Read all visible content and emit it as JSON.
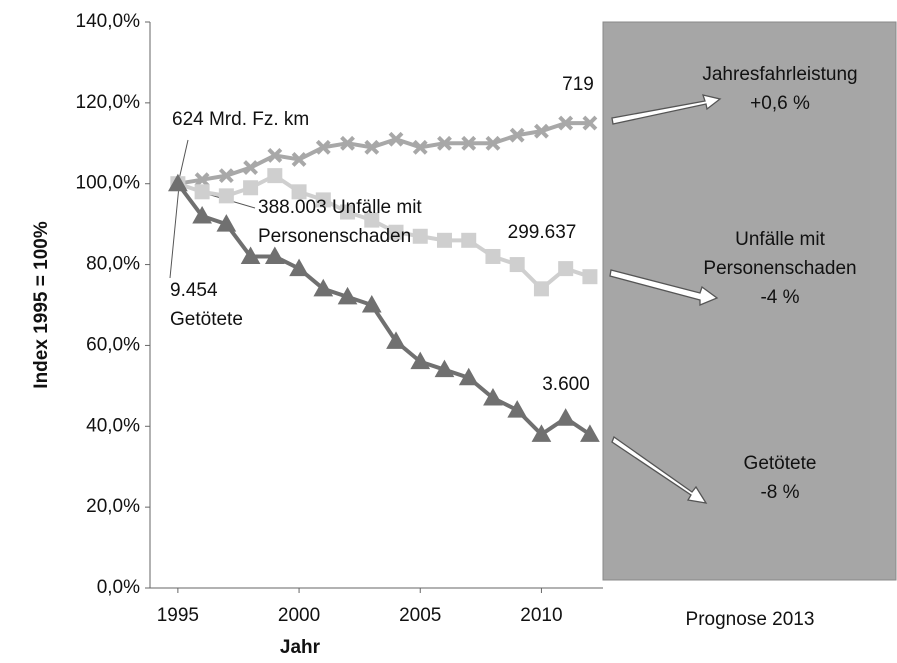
{
  "chart_data": {
    "type": "line",
    "ylabel": "Index 1995 = 100%",
    "xlabel": "Jahr",
    "xlim": [
      1993.85,
      2012.54
    ],
    "xticks": [
      1995,
      2000,
      2005,
      2010
    ],
    "ylim": [
      0,
      140
    ],
    "yticks": [
      {
        "value": 0,
        "label": "0,0%"
      },
      {
        "value": 20,
        "label": "20,0%"
      },
      {
        "value": 40,
        "label": "40,0%"
      },
      {
        "value": 60,
        "label": "60,0%"
      },
      {
        "value": 80,
        "label": "80,0%"
      },
      {
        "value": 100,
        "label": "100,0%"
      },
      {
        "value": 120,
        "label": "120,0%"
      },
      {
        "value": 140,
        "label": "140,0%"
      }
    ],
    "x": [
      1995,
      1996,
      1997,
      1998,
      1999,
      2000,
      2001,
      2002,
      2003,
      2004,
      2005,
      2006,
      2007,
      2008,
      2009,
      2010,
      2011,
      2012
    ],
    "series": [
      {
        "name": "Jahresfahrleistung",
        "color": "#a8a8a8",
        "marker": "x",
        "values": [
          100,
          101,
          102,
          104,
          107,
          106,
          109,
          110,
          109,
          111,
          109,
          110,
          110,
          110,
          112,
          113,
          115,
          115
        ]
      },
      {
        "name": "Unfälle mit Personenschaden",
        "color": "#cfcfcf",
        "marker": "square",
        "values": [
          100,
          98,
          97,
          99,
          102,
          98,
          96,
          93,
          91,
          88,
          87,
          86,
          86,
          82,
          80,
          74,
          79,
          77
        ]
      },
      {
        "name": "Getötete",
        "color": "#707070",
        "marker": "triangle",
        "values": [
          100,
          92,
          90,
          82,
          82,
          79,
          74,
          72,
          70,
          61,
          56,
          54,
          52,
          47,
          44,
          38,
          42,
          38
        ]
      }
    ],
    "annotations": {
      "start_km": [
        "624 Mrd. Fz. km"
      ],
      "start_unfaelle": [
        "388.003 Unfälle mit",
        "Personenschaden"
      ],
      "start_getoetete": [
        "9.454",
        "Getötete"
      ],
      "end_km": [
        "719"
      ],
      "end_unfaelle": [
        "299.637"
      ],
      "end_getoetete": [
        "3.600"
      ]
    },
    "forecast": {
      "title": "Prognose 2013",
      "items": [
        [
          "Jahresfahrleistung",
          "+0,6 %"
        ],
        [
          "Unfälle mit",
          "Personenschaden",
          "-4 %"
        ],
        [
          "Getötete",
          "-8 %"
        ]
      ]
    }
  }
}
